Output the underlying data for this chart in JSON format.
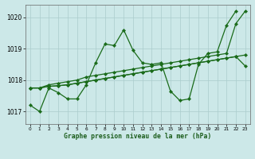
{
  "title": "Graphe pression niveau de la mer (hPa)",
  "bg_color": "#cce8e8",
  "grid_color": "#aacccc",
  "line_color": "#1a6b1a",
  "ylim": [
    1016.6,
    1020.4
  ],
  "xlim": [
    -0.5,
    23.5
  ],
  "yticks": [
    1017,
    1018,
    1019,
    1020
  ],
  "xticks": [
    0,
    1,
    2,
    3,
    4,
    5,
    6,
    7,
    8,
    9,
    10,
    11,
    12,
    13,
    14,
    15,
    16,
    17,
    18,
    19,
    20,
    21,
    22,
    23
  ],
  "series": [
    {
      "x": [
        0,
        1,
        2,
        3,
        4,
        5,
        6,
        7,
        8,
        9,
        10,
        11,
        12,
        13,
        14,
        15,
        16,
        17,
        18,
        19,
        20,
        21,
        22
      ],
      "y": [
        1017.2,
        1017.0,
        1017.75,
        1017.6,
        1017.4,
        1017.4,
        1017.85,
        1018.55,
        1019.15,
        1019.1,
        1019.6,
        1018.95,
        1018.55,
        1018.5,
        1018.55,
        1017.65,
        1017.35,
        1017.4,
        1018.5,
        1018.85,
        1018.9,
        1019.75,
        1020.2
      ]
    },
    {
      "x": [
        0,
        1,
        2,
        3,
        4,
        5,
        6,
        7,
        8,
        9,
        10,
        11,
        12,
        13,
        14,
        15,
        16,
        17,
        18,
        19,
        20,
        21,
        22,
        23
      ],
      "y": [
        1017.75,
        1017.75,
        1017.85,
        1017.9,
        1017.95,
        1018.0,
        1018.1,
        1018.15,
        1018.2,
        1018.25,
        1018.3,
        1018.35,
        1018.4,
        1018.45,
        1018.5,
        1018.55,
        1018.6,
        1018.65,
        1018.7,
        1018.75,
        1018.8,
        1018.85,
        1019.8,
        1020.2
      ]
    },
    {
      "x": [
        0,
        1,
        2,
        3,
        4,
        5,
        6,
        7,
        8,
        9,
        10,
        11,
        12,
        13,
        14,
        15,
        16,
        17,
        18,
        19,
        20,
        21,
        22,
        23
      ],
      "y": [
        1017.75,
        1017.75,
        1017.8,
        1017.82,
        1017.85,
        1017.9,
        1017.95,
        1018.0,
        1018.05,
        1018.1,
        1018.15,
        1018.2,
        1018.25,
        1018.3,
        1018.35,
        1018.4,
        1018.45,
        1018.5,
        1018.55,
        1018.6,
        1018.65,
        1018.7,
        1018.75,
        1018.8
      ]
    },
    {
      "x": [
        0,
        1,
        2,
        3,
        4,
        5,
        6,
        7,
        8,
        9,
        10,
        11,
        12,
        13,
        14,
        15,
        16,
        17,
        18,
        19,
        20,
        21,
        22,
        23
      ],
      "y": [
        1017.75,
        1017.75,
        1017.8,
        1017.82,
        1017.85,
        1017.9,
        1017.95,
        1018.0,
        1018.05,
        1018.1,
        1018.15,
        1018.2,
        1018.25,
        1018.3,
        1018.35,
        1018.4,
        1018.45,
        1018.5,
        1018.55,
        1018.6,
        1018.65,
        1018.7,
        1018.75,
        1018.45
      ]
    }
  ],
  "marker": "D",
  "marker_size": 2.2,
  "linewidth": 0.9
}
